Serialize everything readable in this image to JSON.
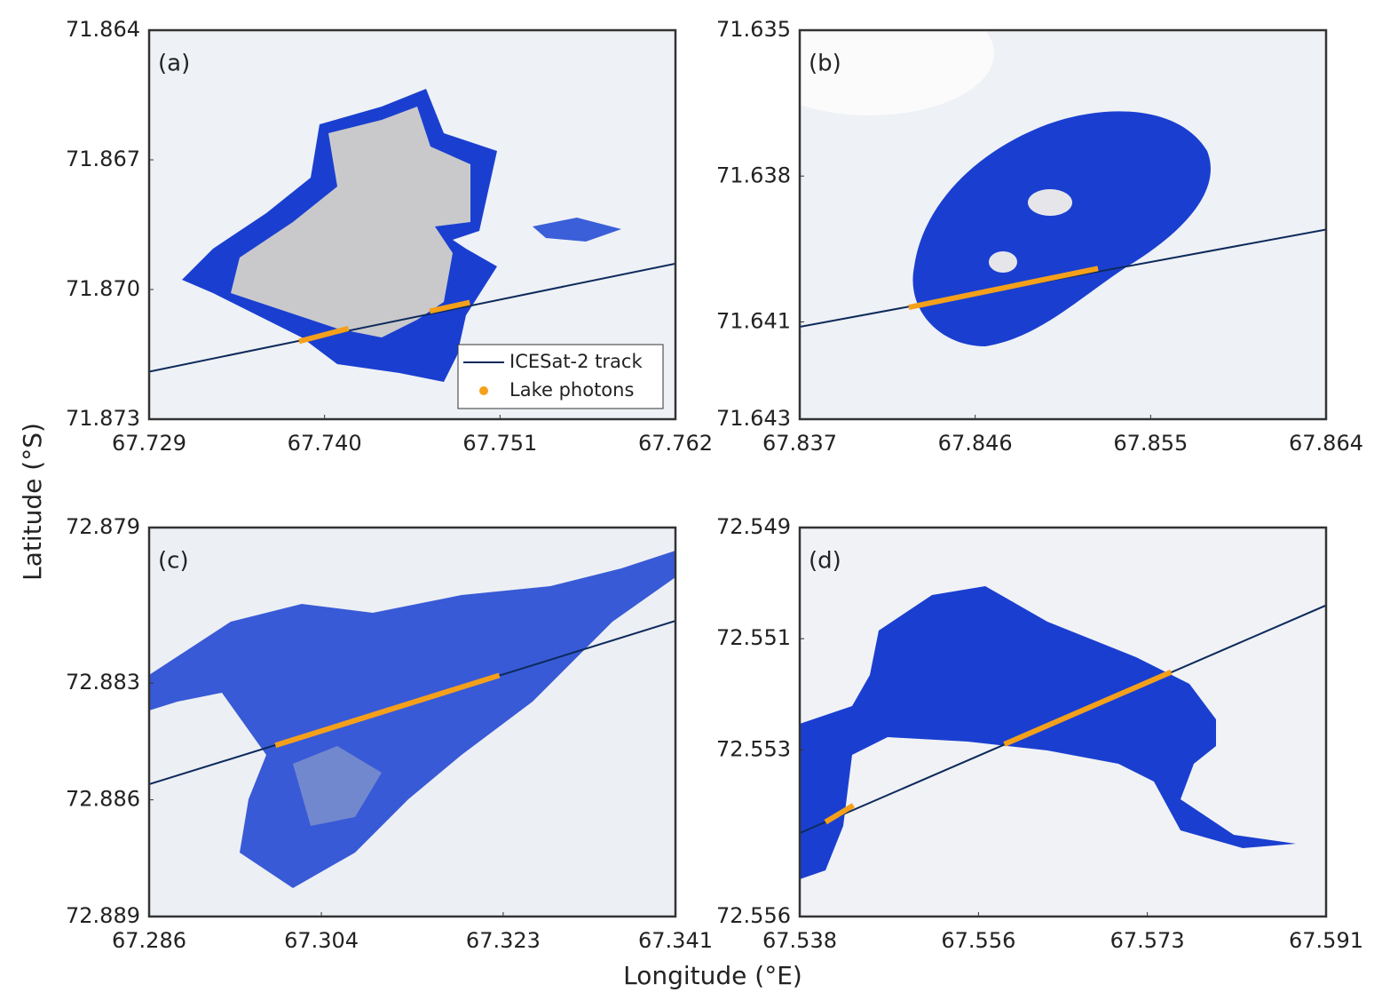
{
  "figure": {
    "xlabel": "Longitude (°E)",
    "ylabel": "Latitude (°S)"
  },
  "chart_data": [
    {
      "type": "line",
      "panel_label": "(a)",
      "xlim": [
        67.729,
        67.762
      ],
      "ylim": [
        71.873,
        71.864
      ],
      "xticks": [
        67.729,
        {
          "value": 67.74,
          "label": "67.740"
        },
        67.751,
        67.762
      ],
      "yticks": [
        71.864,
        71.867,
        {
          "value": 71.87,
          "label": "71.870"
        },
        71.873
      ],
      "track": {
        "color": "#0d2a5c",
        "x": [
          67.729,
          67.762
        ],
        "y": [
          71.8719,
          71.8694
        ]
      },
      "photons": {
        "color": "#f5a01a",
        "segments": [
          {
            "x": [
              67.7384,
              67.7415
            ],
            "y": [
              71.8712,
              71.8709
            ]
          },
          {
            "x": [
              67.7466,
              67.7491
            ],
            "y": [
              71.8705,
              71.8703
            ]
          }
        ]
      },
      "legend": {
        "position": "lower right",
        "labels": [
          "ICESat-2 track",
          "Lake photons"
        ]
      }
    },
    {
      "type": "line",
      "panel_label": "(b)",
      "xlim": [
        67.837,
        67.864
      ],
      "ylim": [
        71.643,
        71.635
      ],
      "xticks": [
        67.837,
        67.846,
        67.855,
        67.864
      ],
      "yticks": [
        71.635,
        71.638,
        71.641,
        71.643
      ],
      "track": {
        "color": "#0d2a5c",
        "x": [
          67.837,
          67.864
        ],
        "y": [
          71.6411,
          71.6391
        ]
      },
      "photons": {
        "color": "#f5a01a",
        "segments": [
          {
            "x": [
              67.8426,
              67.8523
            ],
            "y": [
              71.6407,
              71.6399
            ]
          }
        ]
      }
    },
    {
      "type": "line",
      "panel_label": "(c)",
      "xlim": [
        67.286,
        67.341
      ],
      "ylim": [
        72.889,
        72.879
      ],
      "xticks": [
        67.286,
        67.304,
        67.323,
        67.341
      ],
      "yticks": [
        72.879,
        72.883,
        72.886,
        72.889
      ],
      "track": {
        "color": "#0d2a5c",
        "x": [
          67.286,
          67.341
        ],
        "y": [
          72.8856,
          72.8814
        ]
      },
      "photons": {
        "color": "#f5a01a",
        "segments": [
          {
            "x": [
              67.2992,
              67.3226
            ],
            "y": [
              72.8846,
              72.8828
            ]
          }
        ]
      }
    },
    {
      "type": "line",
      "panel_label": "(d)",
      "xlim": [
        67.538,
        67.591
      ],
      "ylim": [
        72.556,
        72.549
      ],
      "xticks": [
        67.538,
        67.556,
        67.573,
        67.591
      ],
      "yticks": [
        72.549,
        72.551,
        72.553,
        72.556
      ],
      "track": {
        "color": "#0d2a5c",
        "x": [
          67.538,
          67.591
        ],
        "y": [
          72.5545,
          72.5504
        ]
      },
      "photons": {
        "color": "#f5a01a",
        "segments": [
          {
            "x": [
              67.5406,
              67.5434
            ],
            "y": [
              72.5543,
              72.554
            ]
          },
          {
            "x": [
              67.5586,
              67.5754
            ],
            "y": [
              72.5529,
              72.5516
            ]
          }
        ]
      }
    }
  ]
}
